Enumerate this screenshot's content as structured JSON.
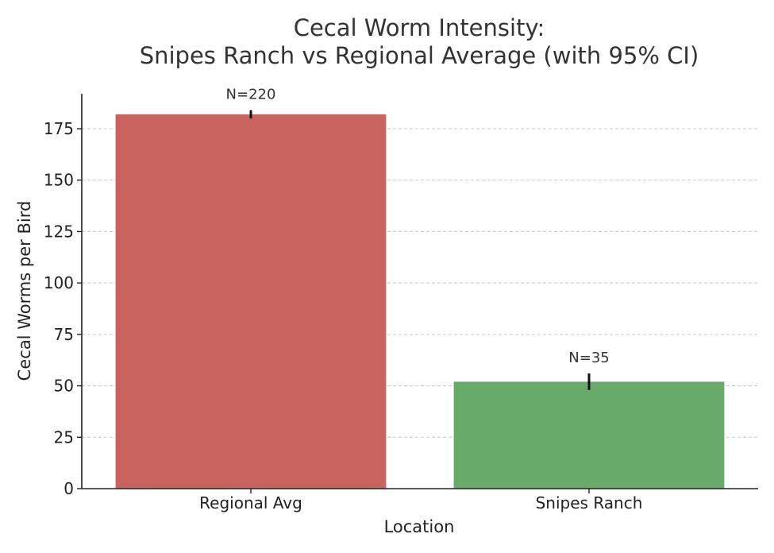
{
  "chart_data": {
    "type": "bar",
    "title_lines": [
      "Cecal Worm Intensity:",
      "Snipes Ranch vs Regional Average (with 95% CI)"
    ],
    "xlabel": "Location",
    "ylabel": "Cecal Worms per Bird",
    "ylim": [
      0,
      192
    ],
    "yticks": [
      0,
      25,
      50,
      75,
      100,
      125,
      150,
      175
    ],
    "grid": true,
    "categories": [
      "Regional Avg",
      "Snipes Ranch"
    ],
    "values": [
      182,
      52
    ],
    "ci_low": [
      180,
      48
    ],
    "ci_high": [
      184,
      56
    ],
    "bar_labels": [
      "N=220",
      "N=35"
    ],
    "colors": [
      "#c8635e",
      "#68aa6a"
    ]
  }
}
